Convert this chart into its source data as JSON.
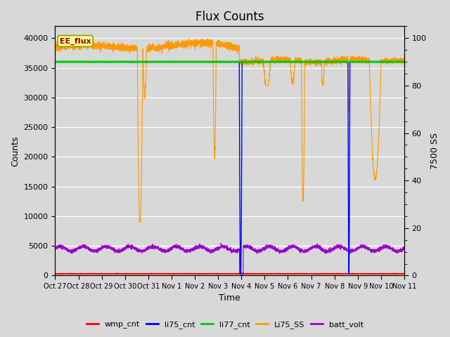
{
  "title": "Flux Counts",
  "ylabel_left": "Counts",
  "ylabel_right": "7500 SS",
  "xlabel": "Time",
  "ylim_left": [
    0,
    42000
  ],
  "ylim_right": [
    0,
    105
  ],
  "bg_color": "#d8d8d8",
  "xtick_labels": [
    "Oct 27",
    "Oct 28",
    "Oct 29",
    "Oct 30",
    "Oct 31",
    "Nov 1",
    "Nov 2",
    "Nov 3",
    "Nov 4",
    "Nov 5",
    "Nov 6",
    "Nov 7",
    "Nov 8",
    "Nov 9",
    "Nov 10",
    "Nov 11"
  ],
  "ee_flux_label": "EE_flux",
  "ee_flux_box_facecolor": "#ffff99",
  "ee_flux_box_edgecolor": "#999900",
  "li77_cnt_value": 36000,
  "legend_entries": [
    "wmp_cnt",
    "li75_cnt",
    "li77_cnt",
    "Li75_SS",
    "batt_volt"
  ],
  "legend_colors": [
    "#ff0000",
    "#0000ff",
    "#00cc00",
    "#ff9900",
    "#9900cc"
  ],
  "title_fontsize": 12,
  "axis_label_fontsize": 9,
  "tick_fontsize": 8,
  "right_tick_minor_dash": "-",
  "orange_base": 38500,
  "orange_noise": 300,
  "purple_base": 4500,
  "purple_noise": 150
}
